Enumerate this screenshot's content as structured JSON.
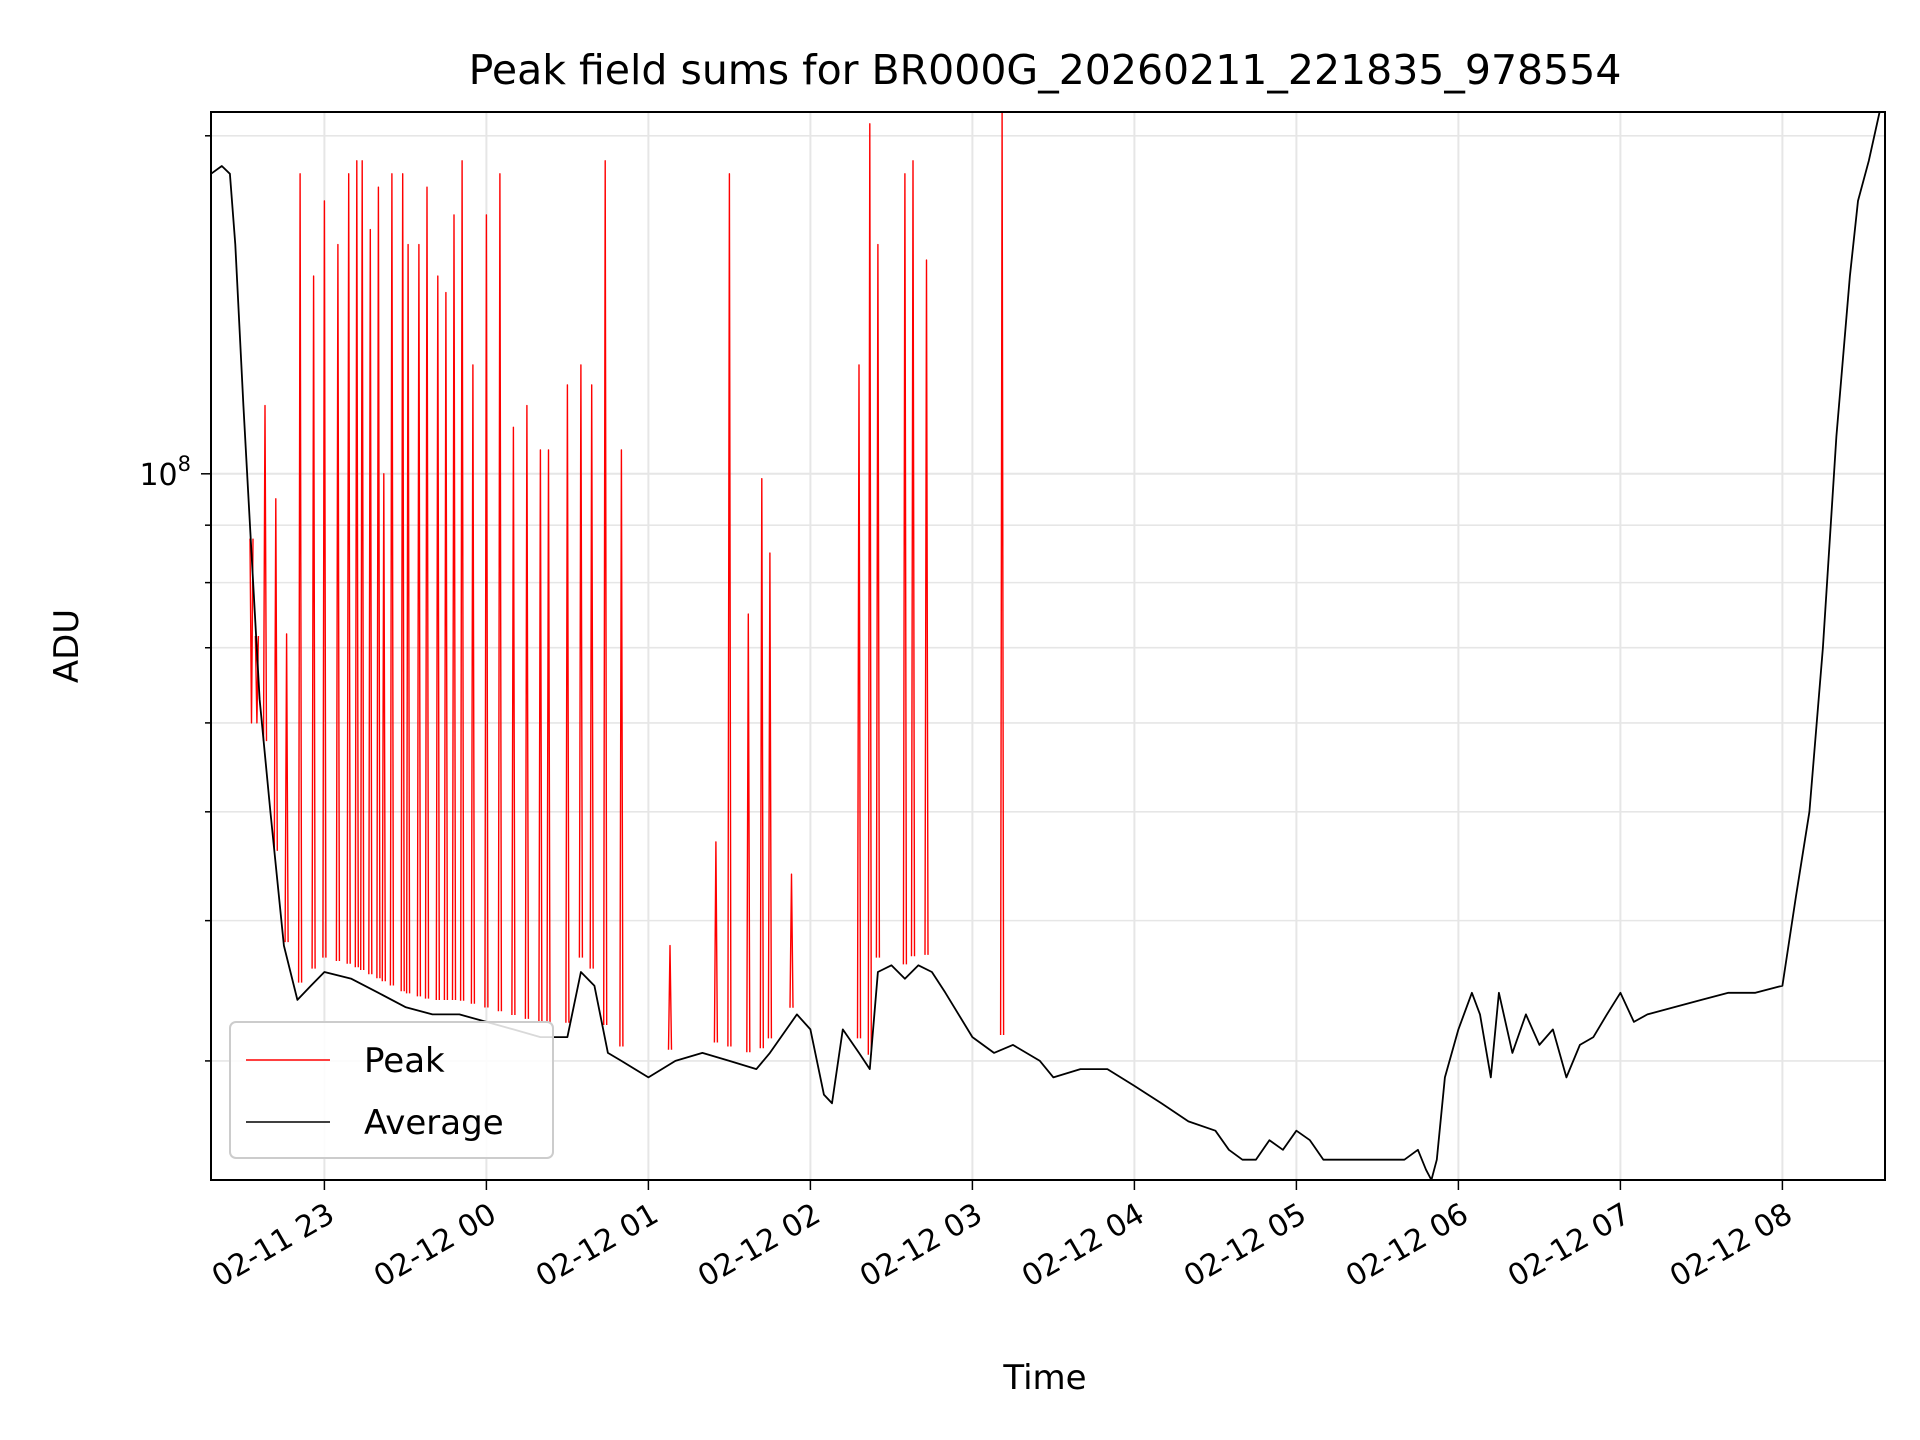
{
  "chart_data": {
    "type": "line",
    "title": "Peak field sums for BR000G_20260211_221835_978554",
    "xlabel": "Time",
    "ylabel": "ADU",
    "yscale": "log",
    "grid": true,
    "legend_location": "lower-left",
    "xlim": [
      "2026-02-11 22:18",
      "2026-02-12 08:38"
    ],
    "ylim": [
      23500000,
      210000000
    ],
    "x_ticks": [
      {
        "value": "2026-02-11 23:00",
        "label": "02-11 23"
      },
      {
        "value": "2026-02-12 00:00",
        "label": "02-12 00"
      },
      {
        "value": "2026-02-12 01:00",
        "label": "02-12 01"
      },
      {
        "value": "2026-02-12 02:00",
        "label": "02-12 02"
      },
      {
        "value": "2026-02-12 03:00",
        "label": "02-12 03"
      },
      {
        "value": "2026-02-12 04:00",
        "label": "02-12 04"
      },
      {
        "value": "2026-02-12 05:00",
        "label": "02-12 05"
      },
      {
        "value": "2026-02-12 06:00",
        "label": "02-12 06"
      },
      {
        "value": "2026-02-12 07:00",
        "label": "02-12 07"
      },
      {
        "value": "2026-02-12 08:00",
        "label": "02-12 08"
      }
    ],
    "y_ticks": [
      {
        "value": 100000000,
        "base": "10",
        "exp": "8"
      }
    ],
    "series": [
      {
        "name": "Average",
        "color": "#000000",
        "x": [
          "2026-02-11 22:18",
          "2026-02-11 22:22",
          "2026-02-11 22:25",
          "2026-02-11 22:27",
          "2026-02-11 22:30",
          "2026-02-11 22:33",
          "2026-02-11 22:36",
          "2026-02-11 22:40",
          "2026-02-11 22:45",
          "2026-02-11 22:50",
          "2026-02-11 22:55",
          "2026-02-11 23:00",
          "2026-02-11 23:10",
          "2026-02-11 23:20",
          "2026-02-11 23:30",
          "2026-02-11 23:40",
          "2026-02-11 23:50",
          "2026-02-12 00:00",
          "2026-02-12 00:10",
          "2026-02-12 00:20",
          "2026-02-12 00:30",
          "2026-02-12 00:35",
          "2026-02-12 00:40",
          "2026-02-12 00:45",
          "2026-02-12 00:50",
          "2026-02-12 01:00",
          "2026-02-12 01:10",
          "2026-02-12 01:20",
          "2026-02-12 01:30",
          "2026-02-12 01:40",
          "2026-02-12 01:45",
          "2026-02-12 01:55",
          "2026-02-12 02:00",
          "2026-02-12 02:05",
          "2026-02-12 02:08",
          "2026-02-12 02:12",
          "2026-02-12 02:18",
          "2026-02-12 02:22",
          "2026-02-12 02:25",
          "2026-02-12 02:30",
          "2026-02-12 02:35",
          "2026-02-12 02:40",
          "2026-02-12 02:45",
          "2026-02-12 02:50",
          "2026-02-12 03:00",
          "2026-02-12 03:08",
          "2026-02-12 03:15",
          "2026-02-12 03:25",
          "2026-02-12 03:30",
          "2026-02-12 03:40",
          "2026-02-12 03:50",
          "2026-02-12 04:00",
          "2026-02-12 04:10",
          "2026-02-12 04:20",
          "2026-02-12 04:30",
          "2026-02-12 04:35",
          "2026-02-12 04:40",
          "2026-02-12 04:45",
          "2026-02-12 04:50",
          "2026-02-12 04:55",
          "2026-02-12 05:00",
          "2026-02-12 05:05",
          "2026-02-12 05:10",
          "2026-02-12 05:20",
          "2026-02-12 05:30",
          "2026-02-12 05:40",
          "2026-02-12 05:45",
          "2026-02-12 05:48",
          "2026-02-12 05:50",
          "2026-02-12 05:52",
          "2026-02-12 05:55",
          "2026-02-12 06:00",
          "2026-02-12 06:05",
          "2026-02-12 06:08",
          "2026-02-12 06:12",
          "2026-02-12 06:15",
          "2026-02-12 06:20",
          "2026-02-12 06:25",
          "2026-02-12 06:30",
          "2026-02-12 06:35",
          "2026-02-12 06:40",
          "2026-02-12 06:45",
          "2026-02-12 06:50",
          "2026-02-12 06:55",
          "2026-02-12 07:00",
          "2026-02-12 07:05",
          "2026-02-12 07:10",
          "2026-02-12 07:20",
          "2026-02-12 07:30",
          "2026-02-12 07:40",
          "2026-02-12 07:50",
          "2026-02-12 08:00",
          "2026-02-12 08:05",
          "2026-02-12 08:10",
          "2026-02-12 08:15",
          "2026-02-12 08:20",
          "2026-02-12 08:25",
          "2026-02-12 08:28",
          "2026-02-12 08:32",
          "2026-02-12 08:36"
        ],
        "values": [
          185000000,
          188000000,
          185000000,
          160000000,
          115000000,
          85000000,
          63000000,
          50000000,
          38000000,
          34000000,
          35000000,
          36000000,
          35500000,
          34500000,
          33500000,
          33000000,
          33000000,
          32500000,
          32000000,
          31500000,
          31500000,
          36000000,
          35000000,
          30500000,
          30000000,
          29000000,
          30000000,
          30500000,
          30000000,
          29500000,
          30500000,
          33000000,
          32000000,
          28000000,
          27500000,
          32000000,
          30500000,
          29500000,
          36000000,
          36500000,
          35500000,
          36500000,
          36000000,
          34500000,
          31500000,
          30500000,
          31000000,
          30000000,
          29000000,
          29500000,
          29500000,
          28500000,
          27500000,
          26500000,
          26000000,
          25000000,
          24500000,
          24500000,
          25500000,
          25000000,
          26000000,
          25500000,
          24500000,
          24500000,
          24500000,
          24500000,
          25000000,
          24000000,
          23500000,
          24500000,
          29000000,
          32000000,
          34500000,
          33000000,
          29000000,
          34500000,
          30500000,
          33000000,
          31000000,
          32000000,
          29000000,
          31000000,
          31500000,
          33000000,
          34500000,
          32500000,
          33000000,
          33500000,
          34000000,
          34500000,
          34500000,
          35000000,
          42000000,
          50000000,
          70000000,
          108000000,
          150000000,
          175000000,
          190000000,
          210000000
        ]
      },
      {
        "name": "Peak",
        "color": "#ff0000",
        "x": [
          "2026-02-11 22:33",
          "2026-02-11 22:35",
          "2026-02-11 22:38",
          "2026-02-11 22:42",
          "2026-02-11 22:46",
          "2026-02-11 22:51",
          "2026-02-11 22:56",
          "2026-02-11 23:00",
          "2026-02-11 23:05",
          "2026-02-11 23:09",
          "2026-02-11 23:12",
          "2026-02-11 23:14",
          "2026-02-11 23:17",
          "2026-02-11 23:20",
          "2026-02-11 23:22",
          "2026-02-11 23:25",
          "2026-02-11 23:29",
          "2026-02-11 23:31",
          "2026-02-11 23:35",
          "2026-02-11 23:38",
          "2026-02-11 23:42",
          "2026-02-11 23:45",
          "2026-02-11 23:48",
          "2026-02-11 23:51",
          "2026-02-11 23:55",
          "2026-02-12 00:00",
          "2026-02-12 00:05",
          "2026-02-12 00:10",
          "2026-02-12 00:15",
          "2026-02-12 00:20",
          "2026-02-12 00:23",
          "2026-02-12 00:30",
          "2026-02-12 00:35",
          "2026-02-12 00:39",
          "2026-02-12 00:44",
          "2026-02-12 00:50",
          "2026-02-12 01:08",
          "2026-02-12 01:25",
          "2026-02-12 01:30",
          "2026-02-12 01:37",
          "2026-02-12 01:42",
          "2026-02-12 01:45",
          "2026-02-12 01:53",
          "2026-02-12 02:18",
          "2026-02-12 02:22",
          "2026-02-12 02:25",
          "2026-02-12 02:35",
          "2026-02-12 02:38",
          "2026-02-12 02:43",
          "2026-02-12 03:11"
        ],
        "values": [
          60000000,
          60000000,
          115000000,
          95000000,
          72000000,
          185000000,
          150000000,
          175000000,
          160000000,
          185000000,
          190000000,
          190000000,
          165000000,
          180000000,
          100000000,
          185000000,
          185000000,
          160000000,
          160000000,
          180000000,
          150000000,
          145000000,
          170000000,
          190000000,
          125000000,
          170000000,
          185000000,
          110000000,
          115000000,
          105000000,
          105000000,
          120000000,
          125000000,
          120000000,
          190000000,
          105000000,
          38000000,
          47000000,
          185000000,
          75000000,
          99000000,
          85000000,
          44000000,
          125000000,
          205000000,
          160000000,
          185000000,
          190000000,
          155000000,
          210000000
        ]
      }
    ]
  }
}
